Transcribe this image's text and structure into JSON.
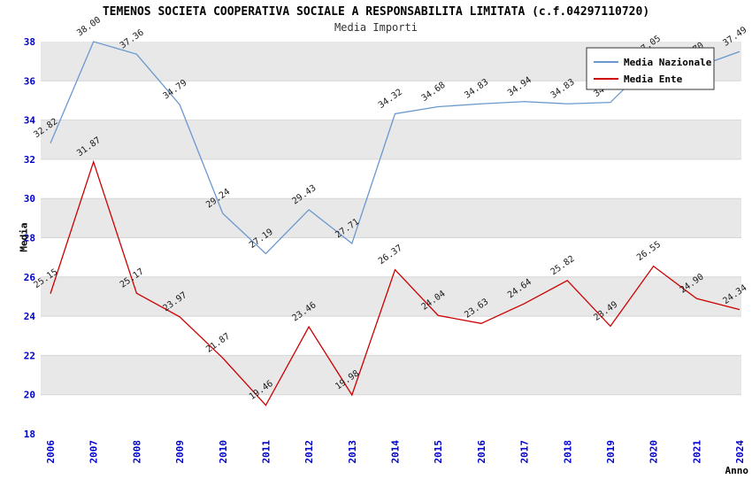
{
  "colors": {
    "band": "#e8e8e8",
    "grid": "#d6d6d6",
    "tick": "#0000cc",
    "point_label": "#1a1a1a",
    "legend_border": "#333333",
    "legend_text": "#000000"
  },
  "chart_data": {
    "type": "line",
    "title": "TEMENOS SOCIETA COOPERATIVA SOCIALE A RESPONSABILITA LIMITATA (c.f.04297110720)",
    "subtitle": "Media Importi",
    "xlabel": "Anno",
    "ylabel": "Media",
    "ylim": [
      18,
      38
    ],
    "ytick_step": 2,
    "grid": "horizontal-bands-alternating",
    "legend_position": "top-right",
    "categories": [
      "2006",
      "2007",
      "2008",
      "2009",
      "2010",
      "2011",
      "2012",
      "2013",
      "2014",
      "2015",
      "2016",
      "2017",
      "2018",
      "2019",
      "2020",
      "2021",
      "2024"
    ],
    "series": [
      {
        "name": "Media Nazionale",
        "color": "#6a98ce",
        "values": [
          32.82,
          38.0,
          37.36,
          34.79,
          29.24,
          27.19,
          29.43,
          27.71,
          34.32,
          34.68,
          34.83,
          34.94,
          34.83,
          34.9,
          37.05,
          36.7,
          37.49
        ]
      },
      {
        "name": "Media Ente",
        "color": "#cc0000",
        "values": [
          25.15,
          31.87,
          25.17,
          23.97,
          21.87,
          19.46,
          23.46,
          19.98,
          26.37,
          24.04,
          23.63,
          24.64,
          25.82,
          23.49,
          26.55,
          24.9,
          24.34
        ]
      }
    ]
  }
}
